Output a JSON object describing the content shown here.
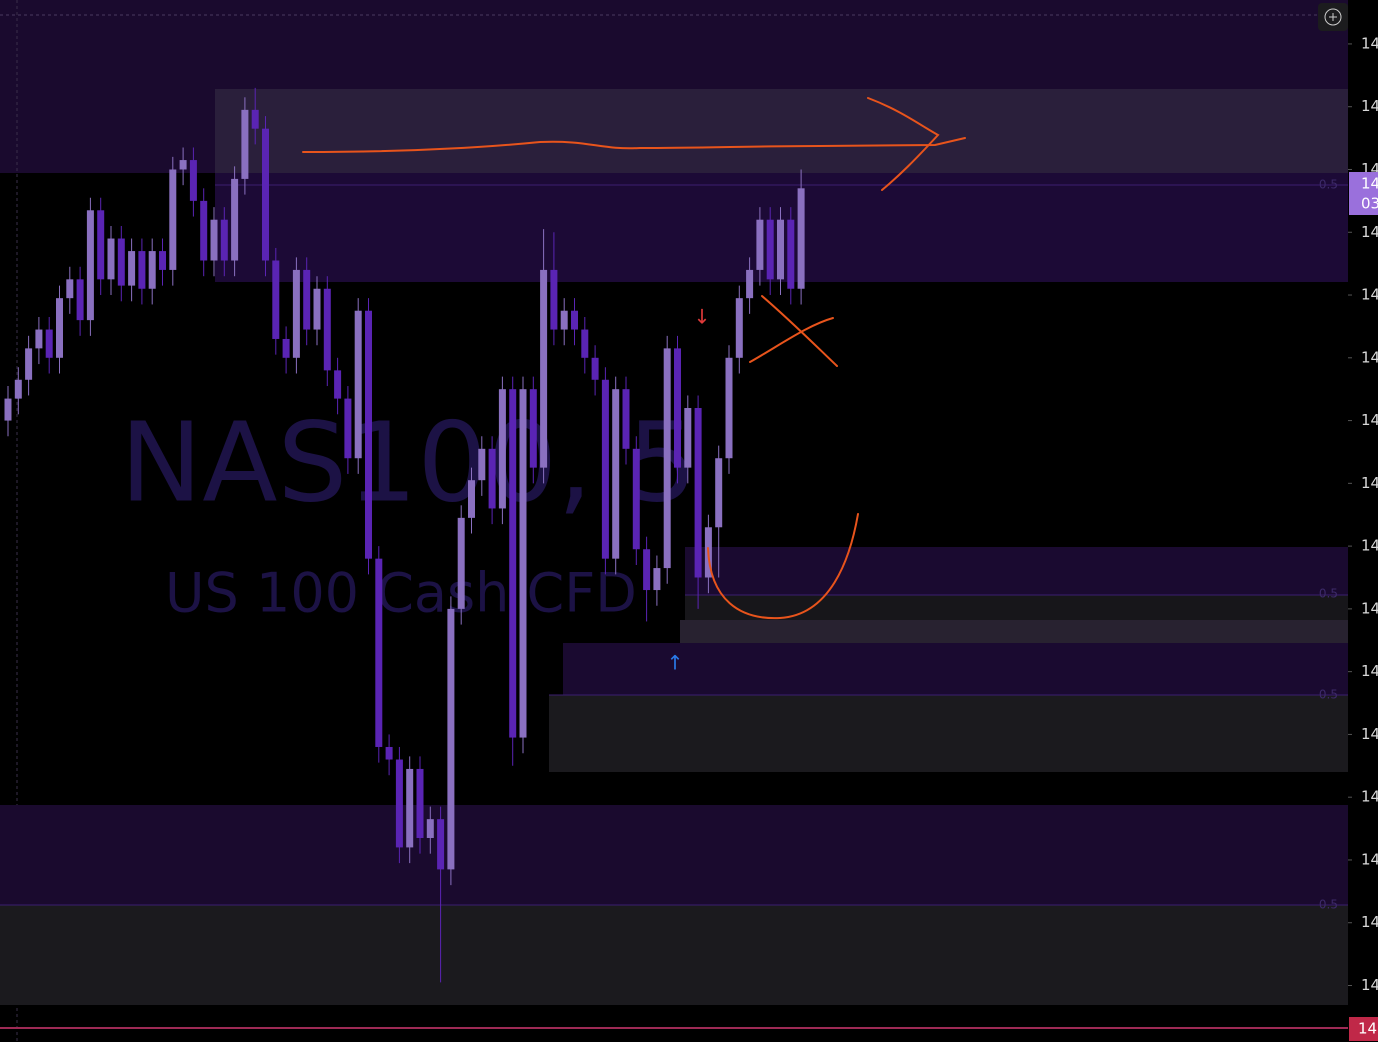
{
  "chart_data": {
    "type": "candlestick",
    "watermark_symbol": "NAS100, 5",
    "watermark_description": "US 100 Cash CFD",
    "up_color": "#8a70c0",
    "down_color": "#5a24b4",
    "categories": [
      null,
      null,
      null,
      null,
      null,
      null,
      null,
      null,
      null,
      null,
      null,
      null,
      null,
      null,
      null,
      null,
      null,
      null,
      null,
      null,
      null,
      null,
      null,
      null,
      null,
      null,
      null,
      null,
      null,
      null,
      null,
      null,
      null,
      null,
      null,
      null,
      null,
      null,
      null,
      null,
      null,
      null,
      null,
      null,
      null,
      null,
      null,
      null,
      null,
      null,
      null,
      null,
      null,
      null,
      null,
      null,
      null,
      null,
      null,
      null,
      null,
      null,
      null,
      null,
      null,
      null,
      null,
      null,
      null,
      null,
      null,
      null,
      null,
      null,
      null,
      null,
      null,
      null
    ],
    "open": [
      14540,
      14547,
      14553,
      14563,
      14569,
      14560,
      14579,
      14585,
      14572,
      14607,
      14585,
      14598,
      14583,
      14594,
      14582,
      14594,
      14588,
      14620,
      14623,
      14610,
      14591,
      14604,
      14591,
      14617,
      14639,
      14633,
      14591,
      14566,
      14560,
      14588,
      14569,
      14582,
      14556,
      14547,
      14528,
      14575,
      14496,
      14436,
      14432,
      14404,
      14429,
      14407,
      14413,
      14397,
      14480,
      14509,
      14521,
      14531,
      14512,
      14550,
      14439,
      14550,
      14525,
      14588,
      14569,
      14575,
      14569,
      14560,
      14553,
      14496,
      14550,
      14531,
      14499,
      14486,
      14493,
      14563,
      14525,
      14544,
      14490,
      14506,
      14528,
      14560,
      14579,
      14588,
      14604,
      14585,
      14604,
      14582
    ],
    "high": [
      14551,
      14557,
      14567,
      14573,
      14573,
      14583,
      14589,
      14589,
      14611,
      14611,
      14602,
      14602,
      14598,
      14598,
      14598,
      14598,
      14624,
      14627,
      14627,
      14614,
      14608,
      14608,
      14621,
      14643,
      14646,
      14637,
      14595,
      14570,
      14592,
      14592,
      14586,
      14586,
      14560,
      14551,
      14579,
      14579,
      14500,
      14440,
      14436,
      14433,
      14433,
      14417,
      14417,
      14484,
      14513,
      14525,
      14535,
      14535,
      14554,
      14554,
      14554,
      14554,
      14601,
      14600,
      14579,
      14579,
      14573,
      14564,
      14557,
      14554,
      14554,
      14535,
      14503,
      14497,
      14567,
      14567,
      14548,
      14548,
      14510,
      14532,
      14564,
      14583,
      14592,
      14608,
      14608,
      14608,
      14608,
      14620
    ],
    "low": [
      14535,
      14542,
      14548,
      14558,
      14555,
      14555,
      14574,
      14567,
      14567,
      14580,
      14580,
      14578,
      14578,
      14577,
      14577,
      14583,
      14583,
      14615,
      14605,
      14586,
      14586,
      14586,
      14586,
      14612,
      14628,
      14586,
      14561,
      14555,
      14555,
      14564,
      14564,
      14551,
      14542,
      14523,
      14523,
      14491,
      14431,
      14427,
      14399,
      14399,
      14402,
      14402,
      14361,
      14392,
      14475,
      14504,
      14516,
      14507,
      14507,
      14430,
      14434,
      14520,
      14520,
      14564,
      14564,
      14564,
      14555,
      14548,
      14491,
      14491,
      14526,
      14494,
      14476,
      14481,
      14488,
      14520,
      14520,
      14480,
      14485,
      14490,
      14523,
      14555,
      14574,
      14583,
      14580,
      14580,
      14577,
      14577
    ],
    "close": [
      14547,
      14553,
      14563,
      14569,
      14560,
      14579,
      14585,
      14572,
      14607,
      14585,
      14598,
      14583,
      14594,
      14582,
      14594,
      14588,
      14620,
      14623,
      14610,
      14591,
      14604,
      14591,
      14617,
      14639,
      14633,
      14591,
      14566,
      14560,
      14588,
      14569,
      14582,
      14556,
      14547,
      14528,
      14575,
      14496,
      14436,
      14432,
      14404,
      14429,
      14407,
      14413,
      14397,
      14480,
      14509,
      14521,
      14531,
      14512,
      14550,
      14439,
      14550,
      14525,
      14588,
      14569,
      14575,
      14569,
      14560,
      14553,
      14496,
      14550,
      14531,
      14499,
      14486,
      14493,
      14563,
      14525,
      14544,
      14490,
      14506,
      14528,
      14560,
      14579,
      14588,
      14604,
      14585,
      14604,
      14582,
      14614
    ],
    "ylim": [
      14342,
      14674
    ],
    "yticks": [
      {
        "value": 14660,
        "label": "14"
      },
      {
        "value": 14640,
        "label": "14"
      },
      {
        "value": 14620,
        "label": "14"
      },
      {
        "value": 14600,
        "label": "14"
      },
      {
        "value": 14580,
        "label": "14"
      },
      {
        "value": 14560,
        "label": "14"
      },
      {
        "value": 14540,
        "label": "14"
      },
      {
        "value": 14520,
        "label": "14"
      },
      {
        "value": 14500,
        "label": "14"
      },
      {
        "value": 14480,
        "label": "14"
      },
      {
        "value": 14460,
        "label": "14"
      },
      {
        "value": 14440,
        "label": "14"
      },
      {
        "value": 14420,
        "label": "14"
      },
      {
        "value": 14400,
        "label": "14"
      },
      {
        "value": 14380,
        "label": "14"
      },
      {
        "value": 14360,
        "label": "14"
      }
    ],
    "current_price_label": [
      "14",
      "03"
    ],
    "last_price_label": "14",
    "zone_labels": [
      "0.5",
      "0.5",
      "0.5",
      "0.5"
    ],
    "annotations": [
      "↓",
      "↑"
    ]
  }
}
